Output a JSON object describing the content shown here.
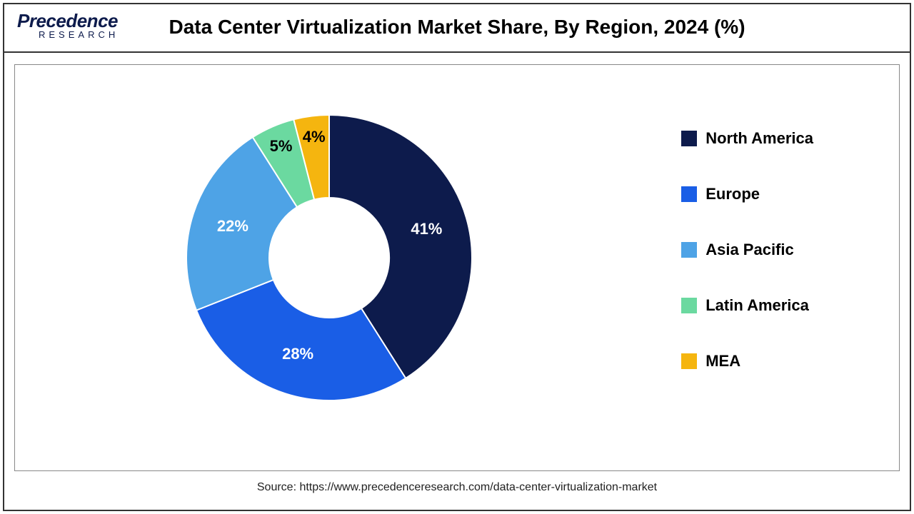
{
  "logo": {
    "top": "Precedence",
    "bottom": "RESEARCH"
  },
  "title": "Data Center Virtualization Market Share, By Region, 2024 (%)",
  "chart": {
    "type": "donut",
    "inner_radius_ratio": 0.42,
    "background_color": "#ffffff",
    "slices": [
      {
        "label": "North America",
        "value": 41,
        "color": "#0d1b4c",
        "display": "41%"
      },
      {
        "label": "Europe",
        "value": 28,
        "color": "#1a5ee6",
        "display": "28%"
      },
      {
        "label": "Asia Pacific",
        "value": 22,
        "color": "#4ea3e6",
        "display": "22%"
      },
      {
        "label": "Latin America",
        "value": 5,
        "color": "#6bd9a0",
        "display": "5%"
      },
      {
        "label": "MEA",
        "value": 4,
        "color": "#f5b50f",
        "display": "4%"
      }
    ],
    "start_angle_deg": -90,
    "label_fontsize": 22,
    "label_color_light": "#ffffff",
    "label_color_dark": "#000000"
  },
  "legend": {
    "marker_size": 22,
    "fontsize": 22,
    "fontweight": "bold"
  },
  "source": "Source: https://www.precedenceresearch.com/data-center-virtualization-market"
}
